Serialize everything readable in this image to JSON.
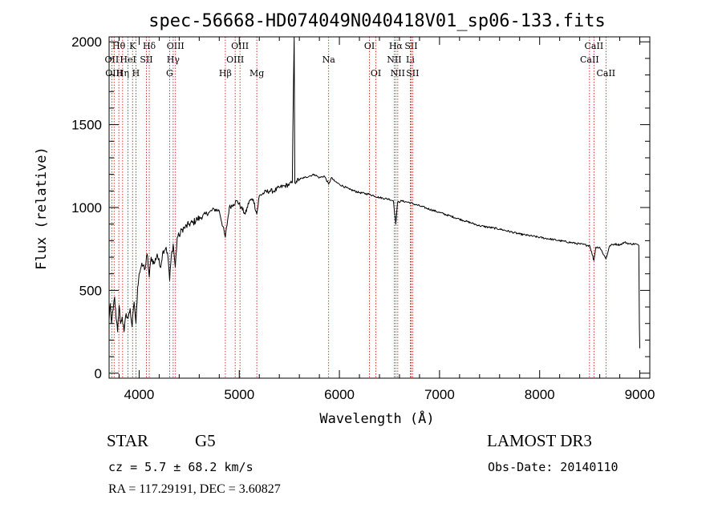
{
  "chart_data": {
    "type": "line",
    "title": "spec-56668-HD074049N040418V01_sp06-133.fits",
    "xlabel": "Wavelength (Å)",
    "ylabel": "Flux (relative)",
    "xlim": [
      3700,
      9100
    ],
    "ylim": [
      -30,
      2030
    ],
    "x_ticks": [
      4000,
      5000,
      6000,
      7000,
      8000,
      9000
    ],
    "x_tick_labels": [
      "4000",
      "5000",
      "6000",
      "7000",
      "8000",
      "9000"
    ],
    "y_ticks": [
      0,
      500,
      1000,
      1500,
      2000
    ],
    "y_tick_labels": [
      "0",
      "500",
      "1000",
      "1500",
      "2000"
    ],
    "x_minor_step": 200,
    "y_minor_step": 100,
    "grid": false,
    "series": [
      {
        "name": "spectrum",
        "color": "#000000",
        "x": [
          3700,
          3712,
          3725,
          3740,
          3755,
          3770,
          3785,
          3800,
          3815,
          3830,
          3850,
          3870,
          3890,
          3910,
          3930,
          3950,
          3968,
          3985,
          4000,
          4020,
          4040,
          4060,
          4080,
          4101,
          4120,
          4150,
          4180,
          4210,
          4240,
          4270,
          4290,
          4305,
          4320,
          4340,
          4361,
          4380,
          4400,
          4430,
          4460,
          4500,
          4540,
          4580,
          4620,
          4660,
          4700,
          4750,
          4800,
          4861,
          4900,
          4940,
          4980,
          5020,
          5060,
          5100,
          5140,
          5175,
          5200,
          5250,
          5300,
          5350,
          5400,
          5450,
          5500,
          5530,
          5540,
          5548,
          5555,
          5570,
          5600,
          5650,
          5700,
          5750,
          5800,
          5850,
          5893,
          5920,
          5950,
          6000,
          6100,
          6200,
          6300,
          6400,
          6500,
          6540,
          6563,
          6580,
          6620,
          6700,
          6800,
          7000,
          7200,
          7400,
          7600,
          7800,
          8000,
          8200,
          8400,
          8500,
          8542,
          8560,
          8600,
          8662,
          8700,
          8750,
          8800,
          8850,
          8900,
          8960,
          8990,
          8996,
          9000
        ],
        "values": [
          320,
          420,
          300,
          380,
          460,
          330,
          250,
          410,
          300,
          340,
          250,
          360,
          330,
          390,
          280,
          430,
          300,
          520,
          600,
          640,
          650,
          630,
          720,
          580,
          700,
          660,
          720,
          640,
          740,
          760,
          690,
          560,
          700,
          780,
          640,
          820,
          830,
          870,
          880,
          900,
          910,
          930,
          940,
          960,
          970,
          990,
          980,
          820,
          1000,
          1020,
          1040,
          1000,
          960,
          1040,
          1050,
          960,
          1070,
          1090,
          1100,
          1100,
          1120,
          1130,
          1140,
          1150,
          1700,
          2060,
          1150,
          1160,
          1170,
          1180,
          1190,
          1200,
          1180,
          1190,
          1140,
          1180,
          1160,
          1140,
          1110,
          1090,
          1080,
          1060,
          1050,
          1040,
          900,
          1030,
          1040,
          1030,
          1010,
          970,
          930,
          890,
          870,
          840,
          820,
          800,
          780,
          770,
          680,
          760,
          760,
          690,
          770,
          780,
          775,
          790,
          780,
          780,
          770,
          300,
          150
        ]
      }
    ],
    "spectral_lines": [
      {
        "label": "Hθ",
        "x": 3797,
        "row": 1
      },
      {
        "label": "OII",
        "x": 3727,
        "row": 2
      },
      {
        "label": "OIII",
        "x": 3750,
        "row": 3
      },
      {
        "label": "Hη",
        "x": 3835,
        "row": 3
      },
      {
        "label": "HeI",
        "x": 3889,
        "row": 2
      },
      {
        "label": "K",
        "x": 3934,
        "row": 1
      },
      {
        "label": "SII",
        "x": 4072,
        "row": 2
      },
      {
        "label": "H",
        "x": 3968,
        "row": 3
      },
      {
        "label": "Hδ",
        "x": 4101,
        "row": 1
      },
      {
        "label": "OIII",
        "x": 4363,
        "row": 1
      },
      {
        "label": "Hγ",
        "x": 4340,
        "row": 2
      },
      {
        "label": "G",
        "x": 4304,
        "row": 3
      },
      {
        "label": "Hβ",
        "x": 4861,
        "row": 3
      },
      {
        "label": "OIII",
        "x": 5007,
        "row": 1
      },
      {
        "label": "OIII",
        "x": 4959,
        "row": 2
      },
      {
        "label": "Mg",
        "x": 5175,
        "row": 3
      },
      {
        "label": "Na",
        "x": 5893,
        "row": 2
      },
      {
        "label": "OI",
        "x": 6300,
        "row": 1
      },
      {
        "label": "OI",
        "x": 6364,
        "row": 3
      },
      {
        "label": "Hα",
        "x": 6563,
        "row": 1
      },
      {
        "label": "SII",
        "x": 6716,
        "row": 1
      },
      {
        "label": "NII",
        "x": 6548,
        "row": 2
      },
      {
        "label": "Li",
        "x": 6708,
        "row": 2
      },
      {
        "label": "NII",
        "x": 6583,
        "row": 3
      },
      {
        "label": "SII",
        "x": 6731,
        "row": 3
      },
      {
        "label": "CaII",
        "x": 8542,
        "row": 1
      },
      {
        "label": "CaII",
        "x": 8498,
        "row": 2
      },
      {
        "label": "CaII",
        "x": 8662,
        "row": 3
      }
    ],
    "line_marker_color": "#cc0000"
  },
  "info": {
    "object_class": "STAR",
    "subclass": "G5",
    "redshift": "cz = 5.7 ± 68.2 km/s",
    "coords": "RA = 117.29191, DEC =   3.60827",
    "survey": "LAMOST DR3",
    "obs_date": "Obs-Date: 20140110"
  }
}
